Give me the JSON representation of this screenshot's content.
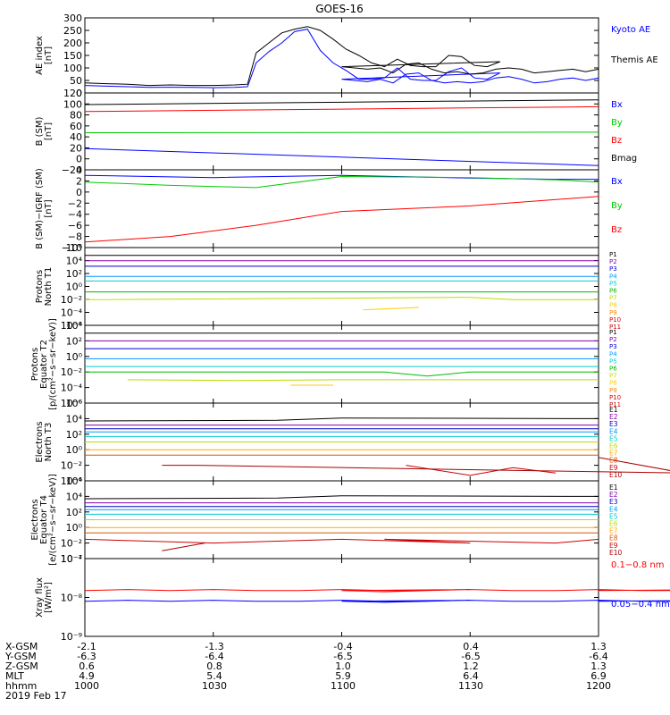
{
  "title": "GOES-16",
  "footer": {
    "row_labels": [
      "X-GSM",
      "Y-GSM",
      "Z-GSM",
      "MLT",
      "hhmm",
      "2019 Feb 17"
    ],
    "columns": [
      [
        "-2.1",
        "-6.3",
        "0.6",
        "4.9",
        "1000"
      ],
      [
        "-1.3",
        "-6.4",
        "0.8",
        "5.4",
        "1030"
      ],
      [
        "-0.4",
        "-6.5",
        "1.0",
        "5.9",
        "1100"
      ],
      [
        "0.4",
        "-6.5",
        "1.2",
        "6.4",
        "1130"
      ],
      [
        "1.3",
        "-6.4",
        "1.3",
        "6.9",
        "1200"
      ]
    ]
  },
  "chart_data": [
    {
      "type": "line",
      "ylabel": [
        "AE index",
        "[nT]"
      ],
      "ylim": [
        0,
        300
      ],
      "yticks": [
        "0",
        "50",
        "100",
        "150",
        "200",
        "250",
        "300"
      ],
      "x": [
        1000,
        1005,
        1010,
        1015,
        1020,
        1025,
        1030,
        1035,
        1038,
        1040,
        1043,
        1046,
        1049,
        1052,
        1055,
        1058,
        1061,
        1064,
        1067,
        1070,
        1073,
        1076,
        1079,
        1082,
        1085,
        1088,
        1091,
        1094,
        1097,
        1100,
        1103,
        1106,
        1109,
        1112,
        1115,
        1118,
        1121,
        1124,
        1127,
        1130,
        1133,
        1136,
        1139,
        1142,
        1145,
        1148,
        1151,
        1154,
        1157,
        1200
      ],
      "series": [
        {
          "name": "Kyoto AE",
          "color": "#0000ff",
          "values": [
            30,
            27,
            25,
            22,
            23,
            22,
            21,
            22,
            25,
            120,
            165,
            200,
            245,
            255,
            170,
            120,
            90,
            55,
            55,
            60,
            100,
            55,
            50,
            50,
            85,
            100,
            60,
            55,
            80,
            55,
            50,
            45,
            55,
            40,
            75,
            80,
            50,
            40,
            45,
            40,
            45,
            60,
            65,
            55,
            40,
            45,
            55,
            60,
            50,
            60
          ]
        },
        {
          "name": "Themis AE",
          "color": "#000000",
          "values": [
            40,
            37,
            35,
            30,
            32,
            30,
            30,
            32,
            35,
            160,
            200,
            240,
            255,
            265,
            250,
            215,
            175,
            150,
            120,
            105,
            135,
            110,
            105,
            105,
            150,
            145,
            110,
            105,
            125,
            105,
            100,
            95,
            100,
            80,
            115,
            120,
            95,
            80,
            85,
            75,
            80,
            95,
            100,
            95,
            80,
            85,
            90,
            95,
            85,
            95
          ]
        }
      ]
    },
    {
      "type": "line",
      "ylabel": [
        "B (SM)",
        "[nT]"
      ],
      "ylim": [
        -25,
        120
      ],
      "yticks": [
        "−20",
        "0",
        "20",
        "40",
        "60",
        "80",
        "100",
        "120"
      ],
      "series": [
        {
          "name": "Bx",
          "color": "#0000ff",
          "x": [
            1000,
            1200
          ],
          "values": [
            15,
            -17
          ]
        },
        {
          "name": "By",
          "color": "#00cc00",
          "x": [
            1000,
            1200
          ],
          "values": [
            45,
            46
          ]
        },
        {
          "name": "Bz",
          "color": "#ff0000",
          "x": [
            1000,
            1200
          ],
          "values": [
            85,
            94
          ]
        },
        {
          "name": "Bmag",
          "color": "#000000",
          "x": [
            1000,
            1200
          ],
          "values": [
            98,
            107
          ]
        }
      ]
    },
    {
      "type": "line",
      "ylabel": [
        "B (SM)−IGRF (SM)",
        "[nT]"
      ],
      "ylim": [
        -10,
        4
      ],
      "yticks": [
        "−10",
        "−8",
        "−6",
        "−4",
        "−2",
        "0",
        "2",
        "4"
      ],
      "series": [
        {
          "name": "Bx",
          "color": "#0000ff",
          "x": [
            1000,
            1030,
            1100,
            1130,
            1150,
            1200
          ],
          "values": [
            3.0,
            2.6,
            3.0,
            2.5,
            2.3,
            2.3
          ]
        },
        {
          "name": "By",
          "color": "#00cc00",
          "x": [
            1000,
            1020,
            1040,
            1100,
            1130,
            1150,
            1200
          ],
          "values": [
            1.8,
            1.2,
            0.8,
            2.8,
            2.6,
            2.2,
            1.8
          ]
        },
        {
          "name": "Bz",
          "color": "#ff0000",
          "x": [
            1000,
            1020,
            1040,
            1100,
            1130,
            1200
          ],
          "values": [
            -9.0,
            -8.0,
            -6.0,
            -3.5,
            -2.5,
            -0.8
          ]
        }
      ]
    },
    {
      "type": "line",
      "ylabel": [
        "Protons",
        "North T1"
      ],
      "yscale": "log",
      "ylim": [
        1e-06,
        10000
      ],
      "yticks": [
        "10⁶",
        "10⁴",
        "10²",
        "10⁰",
        "10⁻²",
        "10⁻⁴",
        "10⁻⁶"
      ],
      "legend": [
        "P1",
        "P2",
        "P3",
        "P4",
        "P5",
        "P6",
        "P7",
        "P8",
        "P9",
        "P10",
        "P11"
      ],
      "series": [
        {
          "name": "P1",
          "color": "#000000",
          "x": [
            1000,
            1200
          ],
          "values": [
            1000,
            1000
          ]
        },
        {
          "name": "P2",
          "color": "#8800aa",
          "x": [
            1000,
            1200
          ],
          "values": [
            200,
            200
          ]
        },
        {
          "name": "P3",
          "color": "#0000cc",
          "x": [
            1000,
            1200
          ],
          "values": [
            40,
            40
          ]
        },
        {
          "name": "P4",
          "color": "#0099ff",
          "x": [
            1000,
            1200
          ],
          "values": [
            2,
            2
          ]
        },
        {
          "name": "P5",
          "color": "#00cccc",
          "x": [
            1000,
            1200
          ],
          "values": [
            0.5,
            0.5
          ]
        },
        {
          "name": "P6",
          "color": "#00bb00",
          "x": [
            1000,
            1200
          ],
          "values": [
            0.02,
            0.02
          ]
        },
        {
          "name": "P7",
          "color": "#bbdd00",
          "x": [
            1000,
            1130,
            1140,
            1200
          ],
          "values": [
            0.002,
            0.004,
            0.002,
            0.002
          ]
        },
        {
          "name": "P8",
          "color": "#ffcc00",
          "x": [
            1105,
            1118
          ],
          "values": [
            0.0001,
            0.0002
          ]
        }
      ]
    },
    {
      "type": "line",
      "ylabel": [
        "Protons",
        "Equator T2",
        "[p/(cm²−s−sr−keV)]"
      ],
      "yscale": "log",
      "ylim": [
        1e-06,
        10000
      ],
      "yticks": [
        "10⁴",
        "10²",
        "10⁰",
        "10⁻²",
        "10⁻⁴",
        "10⁻⁶"
      ],
      "legend": [
        "P1",
        "P2",
        "P3",
        "P4",
        "P5",
        "P6",
        "P7",
        "P8",
        "P9",
        "P10",
        "P11"
      ],
      "series": [
        {
          "name": "P1",
          "color": "#000000",
          "x": [
            1000,
            1200
          ],
          "values": [
            1000,
            1000
          ]
        },
        {
          "name": "P2",
          "color": "#8800aa",
          "x": [
            1000,
            1200
          ],
          "values": [
            100,
            100
          ]
        },
        {
          "name": "P3",
          "color": "#0000cc",
          "x": [
            1000,
            1200
          ],
          "values": [
            10,
            10
          ]
        },
        {
          "name": "P4",
          "color": "#0099ff",
          "x": [
            1000,
            1200
          ],
          "values": [
            0.5,
            0.5
          ]
        },
        {
          "name": "P5",
          "color": "#00cccc",
          "x": [
            1000,
            1200
          ],
          "values": [
            0.05,
            0.05
          ]
        },
        {
          "name": "P6",
          "color": "#00bb00",
          "x": [
            1000,
            1110,
            1120,
            1130,
            1200
          ],
          "values": [
            0.01,
            0.01,
            0.003,
            0.01,
            0.01
          ]
        },
        {
          "name": "P7",
          "color": "#bbdd00",
          "x": [
            1010,
            1035,
            1060,
            1200
          ],
          "values": [
            0.001,
            0.0008,
            0.001,
            0.001
          ]
        },
        {
          "name": "P8",
          "color": "#ffcc00",
          "x": [
            1048,
            1058
          ],
          "values": [
            0.0002,
            0.0002
          ]
        }
      ]
    },
    {
      "type": "line",
      "ylabel": [
        "Electrons",
        "North T3"
      ],
      "yscale": "log",
      "ylim": [
        0.0001,
        1000000
      ],
      "yticks": [
        "10⁶",
        "10⁴",
        "10²",
        "10⁰",
        "10⁻²",
        "10⁻⁴"
      ],
      "legend": [
        "E1",
        "E2",
        "E3",
        "E4",
        "E5",
        "E6",
        "E7",
        "E8",
        "E9",
        "E10"
      ],
      "series": [
        {
          "name": "E1",
          "color": "#000000",
          "x": [
            1000,
            1045,
            1100,
            1200
          ],
          "values": [
            5000,
            6000,
            12000,
            10000
          ]
        },
        {
          "name": "E2",
          "color": "#8800aa",
          "x": [
            1000,
            1200
          ],
          "values": [
            1500,
            1500
          ]
        },
        {
          "name": "E3",
          "color": "#0000cc",
          "x": [
            1000,
            1200
          ],
          "values": [
            500,
            500
          ]
        },
        {
          "name": "E4",
          "color": "#0099ff",
          "x": [
            1000,
            1200
          ],
          "values": [
            200,
            200
          ]
        },
        {
          "name": "E5",
          "color": "#00cccc",
          "x": [
            1000,
            1200
          ],
          "values": [
            50,
            50
          ]
        },
        {
          "name": "E6",
          "color": "#bbdd00",
          "x": [
            1000,
            1200
          ],
          "values": [
            10,
            10
          ]
        },
        {
          "name": "E7",
          "color": "#ffaa00",
          "x": [
            1000,
            1200
          ],
          "values": [
            1,
            1
          ]
        },
        {
          "name": "E8",
          "color": "#dd5500",
          "x": [
            1000,
            1200
          ],
          "values": [
            0.2,
            0.2
          ]
        },
        {
          "name": "E9",
          "color": "#cc0000",
          "x": [
            1115,
            1130,
            1140,
            1150
          ],
          "values": [
            0.01,
            0.0005,
            0.005,
            0.001
          ]
        },
        {
          "name": "E10",
          "color": "#aa0000",
          "x": [
            1018,
            1026,
            1180,
            1200
          ],
          "values": [
            0.01,
            0.01,
            0.001,
            0.1
          ]
        }
      ]
    },
    {
      "type": "line",
      "ylabel": [
        "Electrons",
        "Equator T4",
        "[e/(cm²−s−sr−keV)]"
      ],
      "yscale": "log",
      "ylim": [
        0.0001,
        1000000
      ],
      "yticks": [
        "10⁶",
        "10⁴",
        "10²",
        "10⁰",
        "10⁻²",
        "10⁻⁴"
      ],
      "legend": [
        "E1",
        "E2",
        "E3",
        "E4",
        "E5",
        "E6",
        "E7",
        "E8",
        "E9",
        "E10"
      ],
      "series": [
        {
          "name": "E1",
          "color": "#000000",
          "x": [
            1000,
            1045,
            1100,
            1200
          ],
          "values": [
            5000,
            6000,
            12000,
            10000
          ]
        },
        {
          "name": "E2",
          "color": "#8800aa",
          "x": [
            1000,
            1200
          ],
          "values": [
            1500,
            1500
          ]
        },
        {
          "name": "E3",
          "color": "#0000cc",
          "x": [
            1000,
            1200
          ],
          "values": [
            500,
            500
          ]
        },
        {
          "name": "E4",
          "color": "#0099ff",
          "x": [
            1000,
            1200
          ],
          "values": [
            200,
            200
          ]
        },
        {
          "name": "E5",
          "color": "#00cccc",
          "x": [
            1000,
            1200
          ],
          "values": [
            50,
            50
          ]
        },
        {
          "name": "E6",
          "color": "#bbdd00",
          "x": [
            1000,
            1200
          ],
          "values": [
            10,
            10
          ]
        },
        {
          "name": "E7",
          "color": "#ffaa00",
          "x": [
            1000,
            1200
          ],
          "values": [
            1,
            1
          ]
        },
        {
          "name": "E8",
          "color": "#dd5500",
          "x": [
            1000,
            1200
          ],
          "values": [
            0.2,
            0.2
          ]
        },
        {
          "name": "E9",
          "color": "#cc0000",
          "x": [
            1000,
            1030,
            1060,
            1090,
            1110,
            1150,
            1200
          ],
          "values": [
            0.03,
            0.01,
            0.03,
            0.01,
            0.03,
            0.01,
            0.03
          ]
        },
        {
          "name": "E10",
          "color": "#aa0000",
          "x": [
            1018,
            1028
          ],
          "values": [
            0.001,
            0.01
          ]
        }
      ]
    },
    {
      "type": "line",
      "ylabel": [
        "Xray flux",
        "[W/m²]"
      ],
      "yscale": "log",
      "ylim": [
        1e-09,
        1e-07
      ],
      "yticks": [
        "10⁻⁷",
        "10⁻⁸",
        "10⁻⁹"
      ],
      "x": [
        1000,
        1010,
        1020,
        1030,
        1040,
        1050,
        1060,
        1070,
        1080,
        1090,
        1100,
        1110,
        1120,
        1130,
        1140,
        1150,
        1160,
        1170,
        1180,
        1190,
        1200
      ],
      "series": [
        {
          "name": "0.1−0.8 nm",
          "color": "#ff0000",
          "values": [
            1.5e-08,
            1.6e-08,
            1.5e-08,
            1.6e-08,
            1.5e-08,
            1.5e-08,
            1.6e-08,
            1.5e-08,
            1.5e-08,
            1.6e-08,
            1.5e-08,
            1.4e-08,
            1.5e-08,
            1.6e-08,
            1.5e-08,
            1.5e-08,
            1.6e-08,
            1.5e-08,
            1.5e-08,
            1.6e-08,
            1.5e-08
          ]
        },
        {
          "name": "0.05−0.4 nm",
          "color": "#0000ff",
          "values": [
            8e-09,
            8.5e-09,
            8e-09,
            8.5e-09,
            8e-09,
            8e-09,
            8.5e-09,
            8e-09,
            8e-09,
            8.5e-09,
            8e-09,
            7.5e-09,
            8e-09,
            8.5e-09,
            8e-09,
            8e-09,
            8.5e-09,
            8e-09,
            8e-09,
            8.5e-09,
            8e-09
          ]
        }
      ]
    }
  ]
}
